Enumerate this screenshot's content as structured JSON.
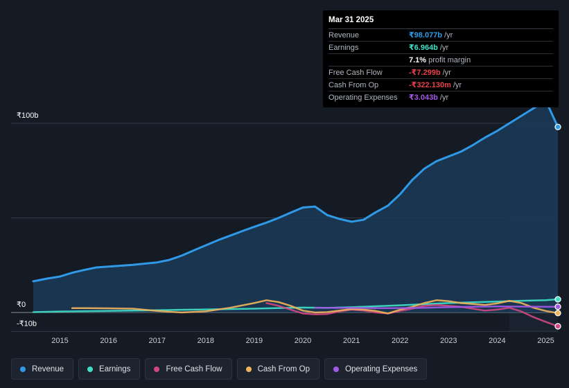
{
  "tooltip": {
    "date": "Mar 31 2025",
    "rows": [
      {
        "label": "Revenue",
        "value": "₹98.077b",
        "unit": "/yr",
        "color": "#2f9ae8"
      },
      {
        "label": "Earnings",
        "value": "₹6.964b",
        "unit": "/yr",
        "color": "#40e0c8"
      },
      {
        "label": "",
        "value": "7.1%",
        "unit": "profit margin",
        "color": "#ffffff"
      },
      {
        "label": "Free Cash Flow",
        "value": "-₹7.299b",
        "unit": "/yr",
        "color": "#e8434a"
      },
      {
        "label": "Cash From Op",
        "value": "-₹322.130m",
        "unit": "/yr",
        "color": "#e8434a"
      },
      {
        "label": "Operating Expenses",
        "value": "₹3.043b",
        "unit": "/yr",
        "color": "#a259e6"
      }
    ]
  },
  "chart_data": {
    "type": "area",
    "y_tick_labels": [
      "₹100b",
      "₹0",
      "-₹10b"
    ],
    "ylim": [
      -10,
      100
    ],
    "xlim": [
      2014.45,
      2025.25
    ],
    "x_tick_labels": [
      "2015",
      "2016",
      "2017",
      "2018",
      "2019",
      "2020",
      "2021",
      "2022",
      "2023",
      "2024",
      "2025"
    ],
    "x_ticks": [
      2015,
      2016,
      2017,
      2018,
      2019,
      2020,
      2021,
      2022,
      2023,
      2024,
      2025
    ],
    "highlight_start": 2024.25,
    "grid": true,
    "series": [
      {
        "name": "Revenue",
        "color": "#2f9ae8",
        "fill": true,
        "x": [
          2014.45,
          2014.75,
          2015.0,
          2015.25,
          2015.5,
          2015.75,
          2016.0,
          2016.5,
          2017.0,
          2017.25,
          2017.5,
          2017.75,
          2018.0,
          2018.25,
          2018.5,
          2018.75,
          2019.0,
          2019.25,
          2019.5,
          2019.75,
          2020.0,
          2020.25,
          2020.5,
          2020.75,
          2021.0,
          2021.25,
          2021.5,
          2021.75,
          2022.0,
          2022.25,
          2022.5,
          2022.75,
          2023.0,
          2023.25,
          2023.5,
          2023.75,
          2024.0,
          2024.25,
          2024.5,
          2024.75,
          2025.0,
          2025.25
        ],
        "y": [
          16.5,
          18.0,
          19.0,
          21.0,
          22.5,
          23.8,
          24.3,
          25.2,
          26.5,
          27.8,
          30.0,
          32.8,
          35.5,
          38.2,
          40.6,
          43.0,
          45.3,
          47.5,
          50.0,
          52.8,
          55.5,
          56.0,
          51.5,
          49.5,
          48.0,
          49.0,
          53.0,
          56.5,
          62.5,
          70.0,
          76.0,
          80.0,
          82.5,
          85.0,
          88.5,
          92.5,
          96.0,
          100.0,
          104.0,
          108.0,
          112.0,
          98.077
        ]
      },
      {
        "name": "Earnings",
        "color": "#40e0c8",
        "fill": false,
        "x": [
          2014.45,
          2015.0,
          2016.0,
          2017.0,
          2018.0,
          2019.0,
          2020.0,
          2020.5,
          2021.0,
          2021.5,
          2022.0,
          2022.5,
          2023.0,
          2023.5,
          2024.0,
          2024.5,
          2025.0,
          2025.25
        ],
        "y": [
          0.2,
          0.5,
          0.8,
          1.2,
          1.6,
          2.0,
          2.6,
          2.4,
          2.8,
          3.3,
          3.8,
          4.4,
          5.0,
          5.4,
          5.8,
          6.2,
          6.5,
          6.964
        ]
      },
      {
        "name": "Free Cash Flow",
        "color": "#d2477f",
        "fill": false,
        "x": [
          2019.25,
          2019.5,
          2019.75,
          2020.0,
          2020.25,
          2020.5,
          2020.75,
          2021.0,
          2021.25,
          2021.5,
          2021.75,
          2022.0,
          2022.25,
          2022.5,
          2022.75,
          2023.0,
          2023.25,
          2023.5,
          2023.75,
          2024.0,
          2024.25,
          2024.5,
          2024.75,
          2025.0,
          2025.25
        ],
        "y": [
          5.0,
          3.5,
          1.5,
          -0.5,
          -1.0,
          -0.8,
          0.5,
          1.5,
          1.0,
          0.0,
          -0.5,
          0.8,
          2.0,
          3.5,
          4.0,
          3.5,
          3.0,
          2.0,
          1.0,
          1.5,
          2.5,
          0.5,
          -2.5,
          -5.0,
          -7.299
        ]
      },
      {
        "name": "Cash From Op",
        "color": "#f0b45c",
        "fill": false,
        "x": [
          2015.25,
          2015.5,
          2016.0,
          2016.5,
          2017.0,
          2017.5,
          2018.0,
          2018.5,
          2019.0,
          2019.25,
          2019.5,
          2019.75,
          2020.0,
          2020.25,
          2020.5,
          2020.75,
          2021.0,
          2021.25,
          2021.5,
          2021.75,
          2022.0,
          2022.25,
          2022.5,
          2022.75,
          2023.0,
          2023.25,
          2023.5,
          2023.75,
          2024.0,
          2024.25,
          2024.5,
          2024.75,
          2025.0,
          2025.25
        ],
        "y": [
          2.3,
          2.3,
          2.2,
          2.0,
          0.8,
          0.0,
          0.6,
          2.5,
          5.0,
          6.5,
          5.5,
          3.5,
          1.0,
          0.0,
          0.2,
          1.0,
          1.8,
          1.5,
          0.8,
          -0.5,
          1.5,
          3.0,
          5.0,
          6.5,
          6.0,
          5.0,
          4.5,
          4.0,
          4.8,
          6.2,
          5.0,
          2.5,
          0.8,
          -0.32213
        ]
      },
      {
        "name": "Operating Expenses",
        "color": "#a259e6",
        "fill": false,
        "x": [
          2020.25,
          2020.5,
          2021.0,
          2021.5,
          2022.0,
          2022.5,
          2023.0,
          2023.5,
          2024.0,
          2024.5,
          2025.0,
          2025.25
        ],
        "y": [
          2.5,
          2.5,
          2.4,
          2.3,
          2.3,
          2.5,
          2.8,
          3.0,
          3.2,
          3.1,
          3.0,
          3.043
        ]
      }
    ]
  },
  "legend": [
    {
      "label": "Revenue",
      "color": "#2f9ae8"
    },
    {
      "label": "Earnings",
      "color": "#40e0c8"
    },
    {
      "label": "Free Cash Flow",
      "color": "#d2477f"
    },
    {
      "label": "Cash From Op",
      "color": "#f0b45c"
    },
    {
      "label": "Operating Expenses",
      "color": "#a259e6"
    }
  ]
}
